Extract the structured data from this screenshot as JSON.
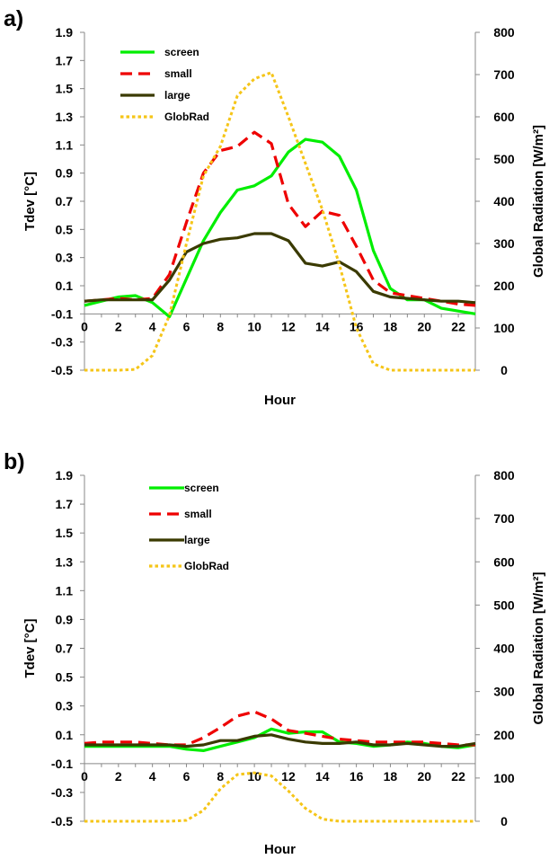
{
  "chart_data": [
    {
      "type": "line",
      "panel_label": "a)",
      "xlabel": "Hour",
      "ylabel": "Tdev [°C]",
      "y2label": "Global Radiation [W/m²]",
      "xlim": [
        0,
        23
      ],
      "ylim": [
        -0.5,
        1.9
      ],
      "y2lim": [
        0,
        800
      ],
      "xticks": [
        "0",
        "2",
        "4",
        "6",
        "8",
        "10",
        "12",
        "14",
        "16",
        "18",
        "20",
        "22"
      ],
      "yticks": [
        "-0.5",
        "-0.3",
        "-0.1",
        "0.1",
        "0.3",
        "0.5",
        "0.7",
        "0.9",
        "1.1",
        "1.3",
        "1.5",
        "1.7",
        "1.9"
      ],
      "y2ticks": [
        "0",
        "100",
        "200",
        "300",
        "400",
        "500",
        "600",
        "700",
        "800"
      ],
      "grid": false,
      "legend": "top-left",
      "x": [
        0,
        1,
        2,
        3,
        4,
        5,
        6,
        7,
        8,
        9,
        10,
        11,
        12,
        13,
        14,
        15,
        16,
        17,
        18,
        19,
        20,
        21,
        22,
        23
      ],
      "series": [
        {
          "name": "screen",
          "axis": "left",
          "color": "#00ee00",
          "dash": "solid",
          "values": [
            -0.04,
            -0.01,
            0.02,
            0.03,
            -0.02,
            -0.12,
            0.15,
            0.42,
            0.62,
            0.78,
            0.81,
            0.88,
            1.05,
            1.14,
            1.12,
            1.02,
            0.78,
            0.35,
            0.08,
            0.0,
            0.0,
            -0.06,
            -0.08,
            -0.1
          ]
        },
        {
          "name": "small",
          "axis": "left",
          "color": "#ee0000",
          "dash": "dashed",
          "values": [
            -0.01,
            0.0,
            0.01,
            0.0,
            0.01,
            0.18,
            0.55,
            0.9,
            1.06,
            1.09,
            1.19,
            1.11,
            0.68,
            0.52,
            0.63,
            0.6,
            0.38,
            0.14,
            0.05,
            0.03,
            0.01,
            -0.01,
            -0.03,
            -0.04
          ]
        },
        {
          "name": "large",
          "axis": "left",
          "color": "#3a3a00",
          "dash": "solid",
          "values": [
            -0.01,
            0.0,
            0.0,
            0.0,
            0.0,
            0.14,
            0.34,
            0.4,
            0.43,
            0.44,
            0.47,
            0.47,
            0.42,
            0.26,
            0.24,
            0.27,
            0.2,
            0.06,
            0.02,
            0.01,
            0.0,
            -0.01,
            -0.01,
            -0.02
          ]
        },
        {
          "name": "GlobRad",
          "axis": "right",
          "color": "#f5c518",
          "dash": "dotted",
          "values": [
            0,
            0,
            0,
            2,
            35,
            130,
            300,
            460,
            530,
            650,
            690,
            705,
            600,
            490,
            380,
            250,
            100,
            15,
            0,
            0,
            0,
            0,
            0,
            0
          ]
        }
      ]
    },
    {
      "type": "line",
      "panel_label": "b)",
      "xlabel": "Hour",
      "ylabel": "Tdev [°C]",
      "y2label": "Global Radiation [W/m²]",
      "xlim": [
        0,
        23
      ],
      "ylim": [
        -0.5,
        1.9
      ],
      "y2lim": [
        0,
        800
      ],
      "xticks": [
        "0",
        "2",
        "4",
        "6",
        "8",
        "10",
        "12",
        "14",
        "16",
        "18",
        "20",
        "22"
      ],
      "yticks": [
        "-0.5",
        "-0.3",
        "-0.1",
        "0.1",
        "0.3",
        "0.5",
        "0.7",
        "0.9",
        "1.1",
        "1.3",
        "1.5",
        "1.7",
        "1.9"
      ],
      "y2ticks": [
        "0",
        "100",
        "200",
        "300",
        "400",
        "500",
        "600",
        "700",
        "800"
      ],
      "grid": false,
      "legend": "top-center",
      "x": [
        0,
        1,
        2,
        3,
        4,
        5,
        6,
        7,
        8,
        9,
        10,
        11,
        12,
        13,
        14,
        15,
        16,
        17,
        18,
        19,
        20,
        21,
        22,
        23
      ],
      "series": [
        {
          "name": "screen",
          "axis": "left",
          "color": "#00ee00",
          "dash": "solid",
          "values": [
            0.02,
            0.02,
            0.02,
            0.02,
            0.02,
            0.02,
            0.0,
            -0.01,
            0.02,
            0.05,
            0.08,
            0.14,
            0.11,
            0.12,
            0.12,
            0.05,
            0.04,
            0.02,
            0.03,
            0.05,
            0.04,
            0.02,
            0.01,
            0.03
          ]
        },
        {
          "name": "small",
          "axis": "left",
          "color": "#ee0000",
          "dash": "dashed",
          "values": [
            0.04,
            0.05,
            0.05,
            0.05,
            0.04,
            0.03,
            0.03,
            0.08,
            0.15,
            0.23,
            0.26,
            0.21,
            0.13,
            0.11,
            0.09,
            0.07,
            0.06,
            0.05,
            0.05,
            0.05,
            0.05,
            0.04,
            0.03,
            0.03
          ]
        },
        {
          "name": "large",
          "axis": "left",
          "color": "#3a3a00",
          "dash": "solid",
          "values": [
            0.03,
            0.03,
            0.03,
            0.03,
            0.03,
            0.03,
            0.02,
            0.03,
            0.06,
            0.06,
            0.09,
            0.1,
            0.07,
            0.05,
            0.04,
            0.04,
            0.05,
            0.03,
            0.03,
            0.04,
            0.03,
            0.02,
            0.02,
            0.04
          ]
        },
        {
          "name": "GlobRad",
          "axis": "right",
          "color": "#f5c518",
          "dash": "dotted",
          "values": [
            0,
            0,
            0,
            0,
            0,
            0,
            2,
            25,
            75,
            108,
            112,
            105,
            70,
            30,
            5,
            0,
            0,
            0,
            0,
            0,
            0,
            0,
            0,
            0
          ]
        }
      ]
    }
  ]
}
